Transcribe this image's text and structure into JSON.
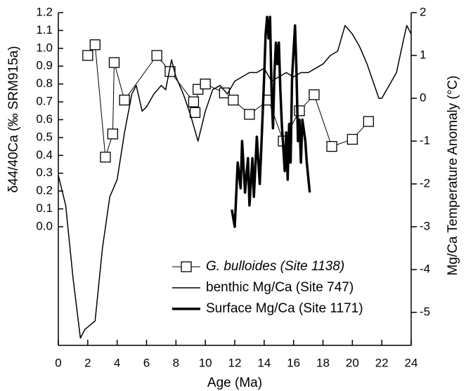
{
  "chart_data": {
    "type": "line",
    "xlabel": "Age (Ma)",
    "ylabel": "δ44/40Ca (‰ SRM915a)",
    "y2label": "Mg/Ca Temperature Anomaly (°C)",
    "xlim": [
      0,
      24
    ],
    "xticks": [
      0,
      2,
      4,
      6,
      8,
      10,
      12,
      14,
      16,
      18,
      20,
      22,
      24
    ],
    "ylim": [
      -0.665,
      1.2
    ],
    "yticks": [
      {
        "value": 0,
        "label": "0.0"
      },
      0.1,
      0.2,
      0.3,
      0.4,
      0.5,
      0.6,
      0.7,
      0.8,
      0.9,
      {
        "value": 1,
        "label": "1.0"
      },
      1.1,
      1.2
    ],
    "y2lim": [
      -5.77,
      2
    ],
    "y2ticks": [
      -5,
      -4,
      -3,
      -2,
      -1,
      0,
      1,
      2
    ],
    "legend": "lower right",
    "series": [
      {
        "name": "G. bulloides (Site 1138)",
        "color": "#000000",
        "marker": "square",
        "line_width": 1,
        "x": [
          2.0,
          2.5,
          3.2,
          3.7,
          3.8,
          4.5,
          6.7,
          7.6,
          9.2,
          9.3,
          9.5,
          10.0,
          11.3,
          11.9,
          13.0,
          14.3,
          15.3,
          16.4,
          17.4,
          18.6,
          20.0,
          21.1
        ],
        "values": [
          0.96,
          1.02,
          0.39,
          0.52,
          0.92,
          0.71,
          0.96,
          0.87,
          0.7,
          0.64,
          0.77,
          0.8,
          0.75,
          0.71,
          0.63,
          0.71,
          0.48,
          0.65,
          0.74,
          0.45,
          0.49,
          0.59
        ]
      },
      {
        "name": "benthic Mg/Ca (Site 747)",
        "color": "#000000",
        "axis": "y2",
        "line_width": 1.5,
        "x": [
          0,
          0.5,
          1.0,
          1.5,
          1.8,
          2.5,
          3.0,
          3.5,
          4.0,
          4.5,
          5.0,
          5.3,
          5.7,
          6.0,
          6.5,
          7.0,
          7.3,
          7.7,
          8.0,
          8.5,
          9.0,
          9.5,
          10.0,
          10.5,
          11.0,
          11.5,
          12.0,
          12.5,
          13.0,
          13.5,
          14.0,
          14.5,
          15.0,
          15.5,
          16.0,
          16.5,
          17.0,
          17.5,
          18.0,
          18.5,
          19.0,
          19.5,
          20.0,
          20.5,
          21.0,
          21.5,
          21.8,
          22.0,
          22.5,
          23.0,
          23.5,
          23.7,
          24.0
        ],
        "values": [
          -1.8,
          -2.5,
          -4.2,
          -5.6,
          -5.4,
          -5.2,
          -3.5,
          -2.3,
          -1.9,
          -0.8,
          0.1,
          0.3,
          -0.3,
          -0.2,
          0.1,
          0.3,
          0.2,
          0.9,
          0.5,
          0.1,
          -0.4,
          -1.0,
          -0.3,
          0.2,
          0.3,
          0.1,
          0.4,
          0.5,
          0.6,
          0.6,
          0.7,
          0.4,
          0.5,
          0.6,
          0.5,
          0.6,
          0.6,
          0.7,
          0.8,
          1.0,
          1.1,
          1.7,
          1.5,
          1.2,
          0.8,
          0.3,
          0.0,
          0.0,
          0.3,
          0.6,
          1.4,
          1.7,
          1.5
        ]
      },
      {
        "name": "Surface Mg/Ca (Site 1171)",
        "color": "#000000",
        "axis": "y2",
        "line_width": 3.5,
        "x": [
          11.8,
          12.0,
          12.2,
          12.4,
          12.5,
          12.7,
          12.9,
          13.0,
          13.2,
          13.3,
          13.5,
          13.7,
          13.8,
          14.0,
          14.1,
          14.2,
          14.3,
          14.4,
          14.5,
          14.6,
          14.7,
          14.8,
          14.9,
          15.0,
          15.1,
          15.2,
          15.4,
          15.5,
          15.6,
          15.7,
          15.8,
          15.9,
          16.1,
          16.2,
          16.3,
          16.4,
          16.5,
          16.6,
          16.8,
          16.9,
          17.1
        ],
        "values": [
          -2.6,
          -3.0,
          -1.5,
          -2.1,
          -1.0,
          -2.2,
          -1.4,
          -2.5,
          -1.4,
          -2.3,
          -0.9,
          -2.0,
          -1.2,
          0.5,
          1.5,
          1.9,
          1.4,
          1.9,
          0.2,
          -0.7,
          0.6,
          1.3,
          0.8,
          1.3,
          0.2,
          -0.6,
          -1.7,
          -0.8,
          -1.9,
          -0.6,
          -1.5,
          0.5,
          1.7,
          0.6,
          -1.0,
          -0.5,
          -1.5,
          -0.5,
          -1.0,
          -1.5,
          -2.2
        ]
      }
    ]
  }
}
